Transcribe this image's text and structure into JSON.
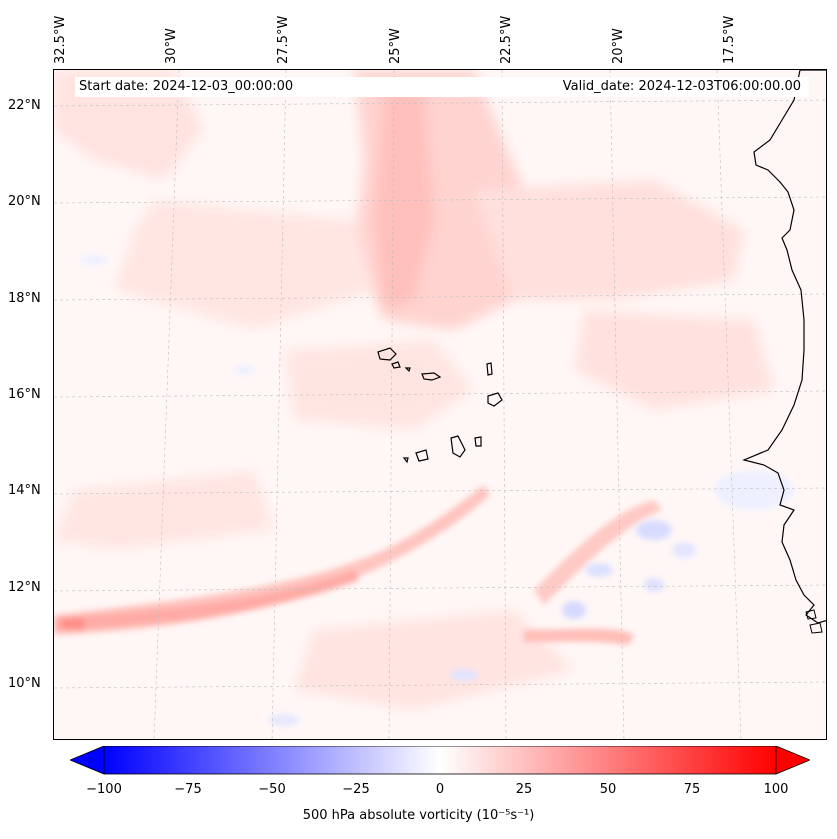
{
  "map": {
    "info": {
      "start_date": "Start date: 2024-12-03_00:00:00",
      "valid_date": "Valid_date: 2024-12-03T06:00:00.00"
    },
    "lon_labels": [
      "32.5°W",
      "30°W",
      "27.5°W",
      "25°W",
      "22.5°W",
      "20°W",
      "17.5°W"
    ],
    "lat_labels": [
      "22°N",
      "20°N",
      "18°N",
      "16°N",
      "14°N",
      "12°N",
      "10°N"
    ],
    "colorbar": {
      "label": "500 hPa absolute vorticity (10⁻⁵s⁻¹)",
      "ticks": [
        "−100",
        "−75",
        "−50",
        "−25",
        "0",
        "25",
        "50",
        "75",
        "100"
      ],
      "range": [
        -100,
        100
      ],
      "colormap": "bwr",
      "extend": "both"
    },
    "colors": {
      "background_field": "#fff7f6",
      "positive_vorticity": "#ff0000",
      "negative_vorticity": "#0000ff",
      "coastline": "#000000",
      "gridline": "#bdbdbd"
    }
  }
}
